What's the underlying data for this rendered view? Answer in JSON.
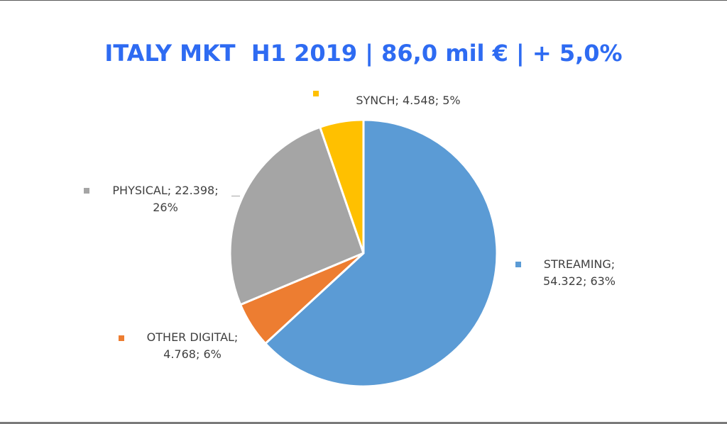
{
  "title": "ITALY MKT  H1 2019 | 86,0 mil € | + 5,0%",
  "chart_data": {
    "type": "pie",
    "title": "ITALY MKT  H1 2019 | 86,0 mil € | + 5,0%",
    "slices": [
      {
        "name": "STREAMING",
        "value": 54.322,
        "percent": 63,
        "color": "#5b9bd5",
        "label_line1": "STREAMING;",
        "label_line2": "54.322; 63%"
      },
      {
        "name": "OTHER DIGITAL",
        "value": 4.768,
        "percent": 6,
        "color": "#ed7d31",
        "label_line1": "OTHER DIGITAL;",
        "label_line2": "4.768; 6%"
      },
      {
        "name": "PHYSICAL",
        "value": 22.398,
        "percent": 26,
        "color": "#a5a5a5",
        "label_line1": "PHYSICAL; 22.398;",
        "label_line2": "26%"
      },
      {
        "name": "SYNCH",
        "value": 4.548,
        "percent": 5,
        "color": "#ffc000",
        "label_line1": "SYNCH; 4.548; 5%",
        "label_line2": ""
      }
    ],
    "start": "12 o'clock",
    "direction": "clockwise"
  }
}
